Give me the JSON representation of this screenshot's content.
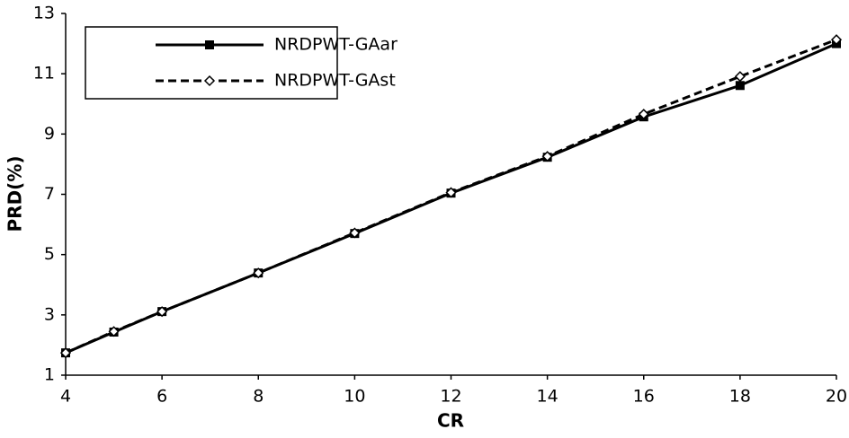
{
  "chart_data": {
    "type": "line",
    "x_label": "CR",
    "y_label": "PRD(%)",
    "x": [
      4,
      5,
      6,
      8,
      10,
      12,
      14,
      16,
      18,
      20
    ],
    "series": [
      {
        "name": "NRDPWT-GAar",
        "color": "#000000",
        "marker": "square",
        "line_style": "solid",
        "values": [
          1.74,
          2.43,
          3.11,
          4.39,
          5.7,
          7.04,
          8.23,
          9.57,
          10.61,
          12.0
        ]
      },
      {
        "name": "NRDPWT-GAst",
        "color": "#000000",
        "marker": "diamond",
        "line_style": "dashed",
        "values": [
          1.74,
          2.45,
          3.11,
          4.39,
          5.72,
          7.06,
          8.26,
          9.66,
          10.91,
          12.13
        ]
      }
    ],
    "xlim": [
      4,
      20
    ],
    "xticks": [
      4,
      6,
      8,
      10,
      12,
      14,
      16,
      18,
      20
    ],
    "ylim": [
      1,
      13
    ],
    "yticks": [
      1,
      3,
      5,
      7,
      9,
      11,
      13
    ],
    "grid": false,
    "legend_position": "upper-left"
  }
}
